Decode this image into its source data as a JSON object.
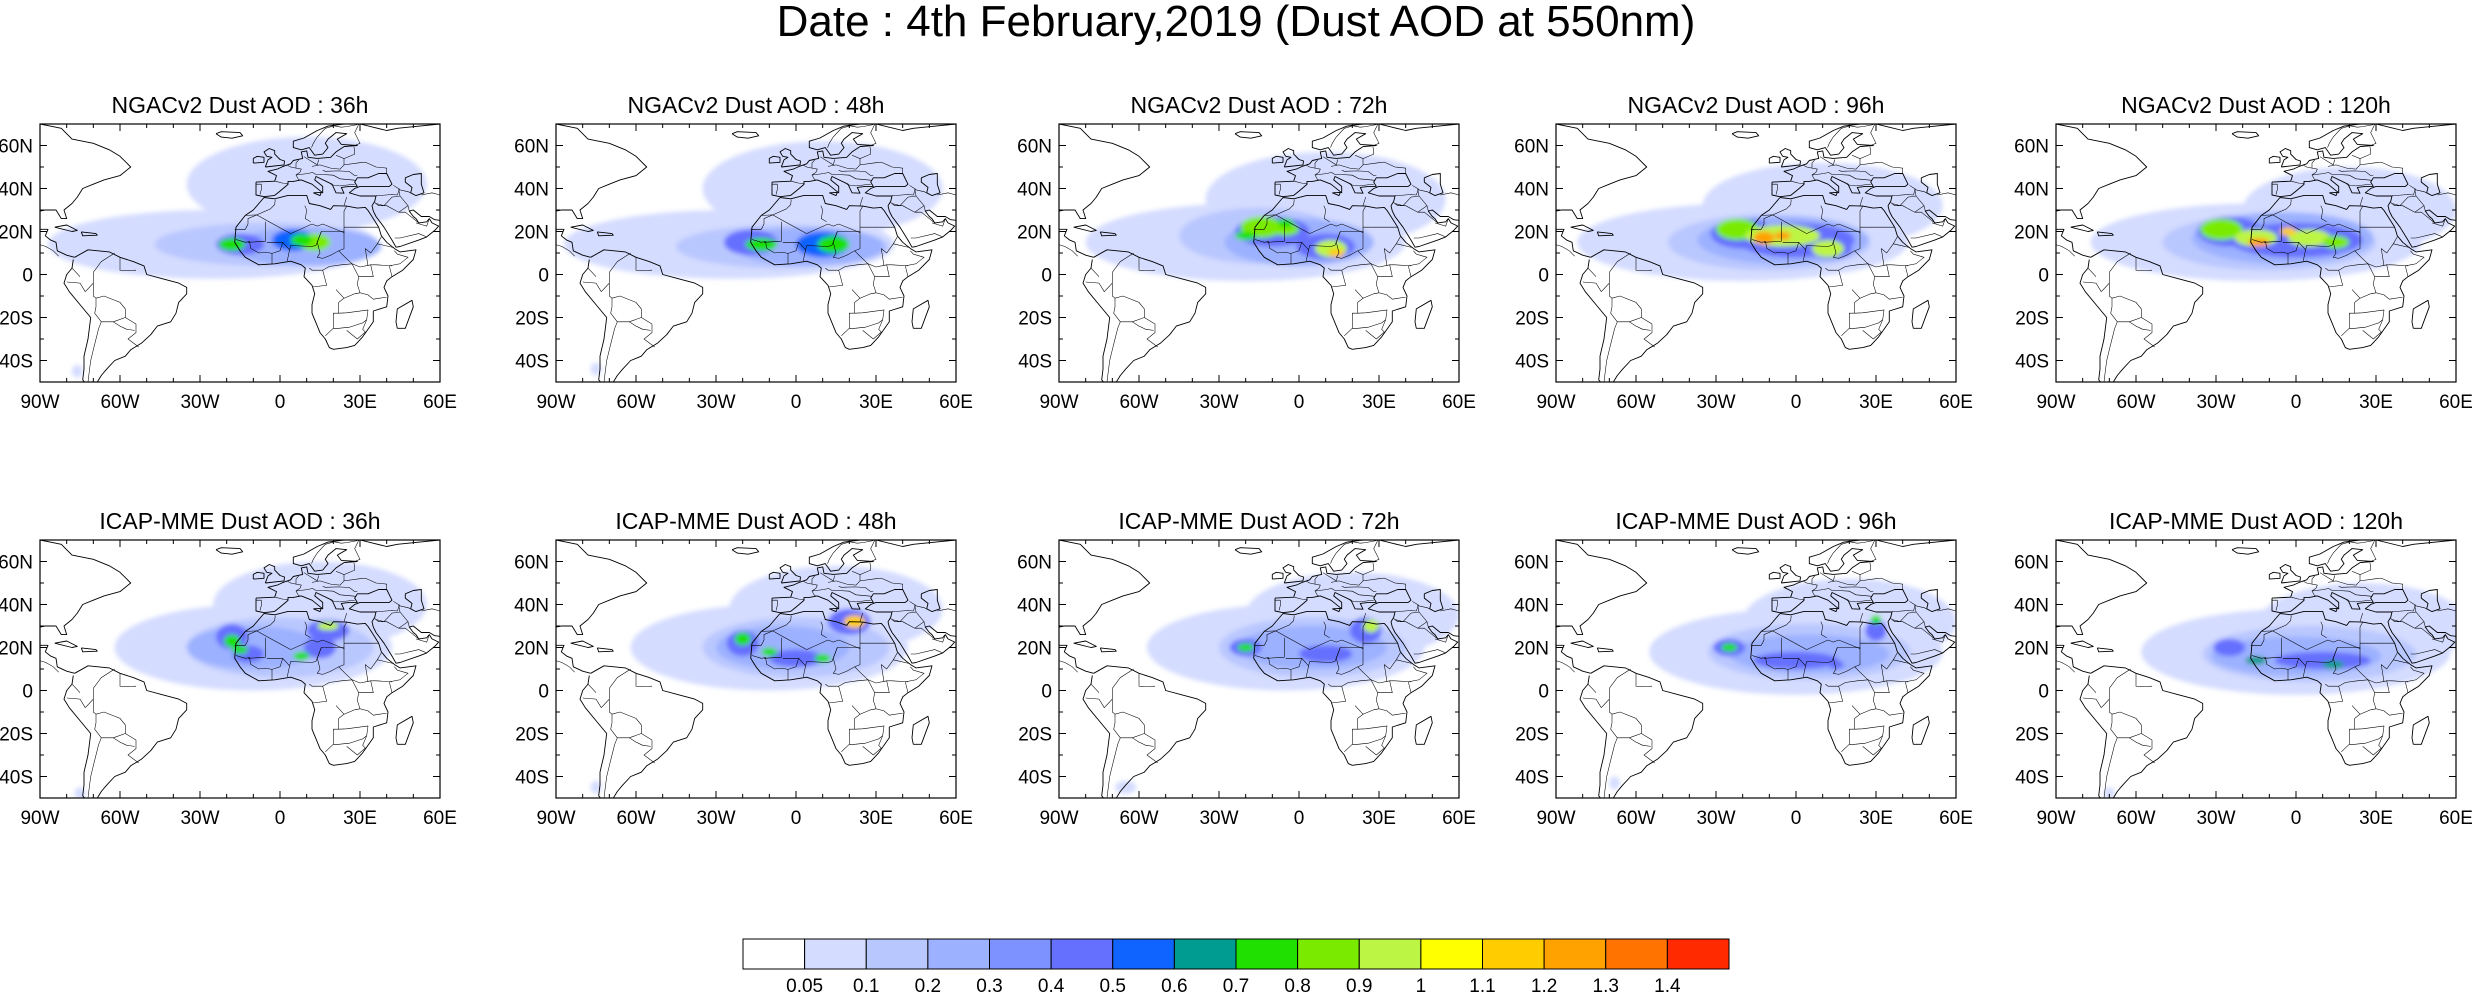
{
  "title": "Date : 4th February,2019 (Dust AOD at 550nm)",
  "lon_ticks": [
    "90W",
    "60W",
    "30W",
    "0",
    "30E",
    "60E"
  ],
  "lat_ticks": [
    "60N",
    "40N",
    "20N",
    "0",
    "20S",
    "40S"
  ],
  "panels": [
    {
      "title": "NGACv2 Dust AOD : 36h"
    },
    {
      "title": "NGACv2 Dust AOD : 48h"
    },
    {
      "title": "NGACv2 Dust AOD : 72h"
    },
    {
      "title": "NGACv2 Dust AOD : 96h"
    },
    {
      "title": "NGACv2 Dust AOD : 120h"
    },
    {
      "title": "ICAP-MME Dust AOD : 36h"
    },
    {
      "title": "ICAP-MME Dust AOD : 48h"
    },
    {
      "title": "ICAP-MME Dust AOD : 72h"
    },
    {
      "title": "ICAP-MME Dust AOD : 96h"
    },
    {
      "title": "ICAP-MME Dust AOD : 120h"
    }
  ],
  "colorbar": {
    "labels": [
      "0.05",
      "0.1",
      "0.2",
      "0.3",
      "0.4",
      "0.5",
      "0.6",
      "0.7",
      "0.8",
      "0.9",
      "1",
      "1.1",
      "1.2",
      "1.3",
      "1.4"
    ],
    "colors": [
      "#ffffff",
      "#d4dcff",
      "#b9c7ff",
      "#9cb1ff",
      "#7e92ff",
      "#6670ff",
      "#0f64ff",
      "#009c91",
      "#1fe000",
      "#7aeb00",
      "#bdf545",
      "#ffff00",
      "#ffcc00",
      "#ffa200",
      "#ff7400",
      "#ff2a00"
    ]
  }
}
